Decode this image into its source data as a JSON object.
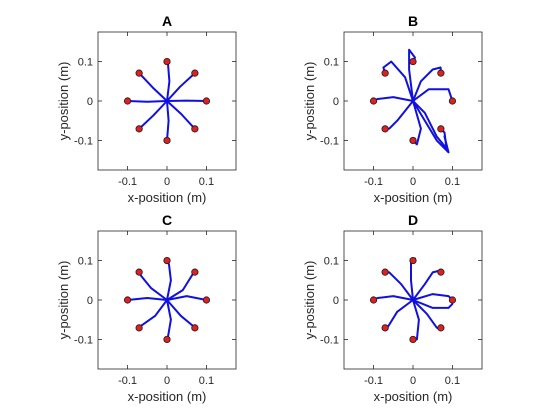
{
  "chart_data": [
    {
      "type": "line",
      "title": "A",
      "xlabel": "x-position (m)",
      "ylabel": "y-position (m)",
      "xlim": [
        -0.175,
        0.175
      ],
      "ylim": [
        -0.175,
        0.175
      ],
      "xticks": [
        {
          "value": -0.1,
          "label": "-0.1"
        },
        {
          "value": 0,
          "label": "0"
        },
        {
          "value": 0.1,
          "label": "0.1"
        }
      ],
      "yticks": [
        {
          "value": -0.1,
          "label": "-0.1"
        },
        {
          "value": 0,
          "label": "0"
        },
        {
          "value": 0.1,
          "label": "0.1"
        }
      ],
      "targets": [
        [
          0.1,
          0
        ],
        [
          0.0707,
          0.0707
        ],
        [
          0,
          0.1
        ],
        [
          -0.0707,
          0.0707
        ],
        [
          -0.1,
          0
        ],
        [
          -0.0707,
          -0.0707
        ],
        [
          0,
          -0.1
        ],
        [
          0.0707,
          -0.0707
        ]
      ],
      "paths": [
        [
          [
            0,
            0
          ],
          [
            0.05,
            0.001
          ],
          [
            0.1,
            0
          ]
        ],
        [
          [
            0,
            0
          ],
          [
            0.033,
            0.036
          ],
          [
            0.0707,
            0.0707
          ]
        ],
        [
          [
            0,
            0
          ],
          [
            0.006,
            0.05
          ],
          [
            0.002,
            0.1
          ]
        ],
        [
          [
            0,
            0
          ],
          [
            -0.036,
            0.034
          ],
          [
            -0.0707,
            0.0707
          ]
        ],
        [
          [
            0,
            0
          ],
          [
            -0.05,
            -0.002
          ],
          [
            -0.1,
            0
          ]
        ],
        [
          [
            0,
            0
          ],
          [
            -0.034,
            -0.036
          ],
          [
            -0.0707,
            -0.0707
          ]
        ],
        [
          [
            0,
            0
          ],
          [
            0.004,
            -0.05
          ],
          [
            0,
            -0.1
          ]
        ],
        [
          [
            0,
            0
          ],
          [
            0.036,
            -0.033
          ],
          [
            0.0707,
            -0.0707
          ]
        ]
      ]
    },
    {
      "type": "line",
      "title": "B",
      "xlabel": "x-position (m)",
      "ylabel": "y-position (m)",
      "xlim": [
        -0.175,
        0.175
      ],
      "ylim": [
        -0.175,
        0.175
      ],
      "xticks": [
        {
          "value": -0.1,
          "label": "-0.1"
        },
        {
          "value": 0,
          "label": "0"
        },
        {
          "value": 0.1,
          "label": "0.1"
        }
      ],
      "yticks": [
        {
          "value": -0.1,
          "label": "-0.1"
        },
        {
          "value": 0,
          "label": "0"
        },
        {
          "value": 0.1,
          "label": "0.1"
        }
      ],
      "targets": [
        [
          0.1,
          0
        ],
        [
          0.0707,
          0.0707
        ],
        [
          0,
          0.1
        ],
        [
          -0.0707,
          0.0707
        ],
        [
          -0.1,
          0
        ],
        [
          -0.0707,
          -0.0707
        ],
        [
          0,
          -0.1
        ],
        [
          0.0707,
          -0.0707
        ]
      ],
      "paths": [
        [
          [
            0,
            0
          ],
          [
            0.04,
            0.03
          ],
          [
            0.09,
            0.03
          ],
          [
            0.1,
            0
          ]
        ],
        [
          [
            0,
            0
          ],
          [
            0.02,
            0.05
          ],
          [
            0.05,
            0.08
          ],
          [
            0.07,
            0.085
          ],
          [
            0.0707,
            0.0707
          ]
        ],
        [
          [
            0,
            0
          ],
          [
            -0.01,
            0.08
          ],
          [
            -0.01,
            0.13
          ],
          [
            0.005,
            0.11
          ],
          [
            0,
            0.1
          ]
        ],
        [
          [
            0,
            0
          ],
          [
            -0.02,
            0.06
          ],
          [
            -0.055,
            0.1
          ],
          [
            -0.075,
            0.085
          ],
          [
            -0.0707,
            0.0707
          ]
        ],
        [
          [
            0,
            0
          ],
          [
            -0.05,
            0.01
          ],
          [
            -0.09,
            0.005
          ],
          [
            -0.1,
            0
          ]
        ],
        [
          [
            0,
            0
          ],
          [
            -0.04,
            -0.05
          ],
          [
            -0.06,
            -0.07
          ],
          [
            -0.0707,
            -0.0707
          ]
        ],
        [
          [
            0,
            0
          ],
          [
            0.02,
            -0.07
          ],
          [
            0.01,
            -0.11
          ],
          [
            0,
            -0.1
          ]
        ],
        [
          [
            0,
            0
          ],
          [
            0.03,
            -0.03
          ],
          [
            0.06,
            -0.09
          ],
          [
            0.085,
            -0.12
          ],
          [
            0.08,
            -0.08
          ],
          [
            0.0707,
            -0.0707
          ]
        ],
        [
          [
            0,
            0
          ],
          [
            0.06,
            -0.1
          ],
          [
            0.09,
            -0.13
          ],
          [
            0.08,
            -0.09
          ]
        ]
      ]
    },
    {
      "type": "line",
      "title": "C",
      "xlabel": "x-position (m)",
      "ylabel": "y-position (m)",
      "xlim": [
        -0.175,
        0.175
      ],
      "ylim": [
        -0.175,
        0.175
      ],
      "xticks": [
        {
          "value": -0.1,
          "label": "-0.1"
        },
        {
          "value": 0,
          "label": "0"
        },
        {
          "value": 0.1,
          "label": "0.1"
        }
      ],
      "yticks": [
        {
          "value": -0.1,
          "label": "-0.1"
        },
        {
          "value": 0,
          "label": "0"
        },
        {
          "value": 0.1,
          "label": "0.1"
        }
      ],
      "targets": [
        [
          0.1,
          0
        ],
        [
          0.0707,
          0.0707
        ],
        [
          0,
          0.1
        ],
        [
          -0.0707,
          0.0707
        ],
        [
          -0.1,
          0
        ],
        [
          -0.0707,
          -0.0707
        ],
        [
          0,
          -0.1
        ],
        [
          0.0707,
          -0.0707
        ]
      ],
      "paths": [
        [
          [
            0,
            0
          ],
          [
            0.05,
            0.01
          ],
          [
            0.1,
            0
          ]
        ],
        [
          [
            0,
            0
          ],
          [
            0.04,
            0.025
          ],
          [
            0.065,
            0.065
          ],
          [
            0.0707,
            0.0707
          ]
        ],
        [
          [
            0,
            0
          ],
          [
            0.01,
            0.05
          ],
          [
            0.005,
            0.09
          ],
          [
            0,
            0.1
          ]
        ],
        [
          [
            0,
            0
          ],
          [
            -0.04,
            0.03
          ],
          [
            -0.065,
            0.06
          ],
          [
            -0.0707,
            0.0707
          ]
        ],
        [
          [
            0,
            0
          ],
          [
            -0.05,
            0.005
          ],
          [
            -0.1,
            0
          ]
        ],
        [
          [
            0,
            0
          ],
          [
            -0.03,
            -0.04
          ],
          [
            -0.065,
            -0.065
          ],
          [
            -0.0707,
            -0.0707
          ]
        ],
        [
          [
            0,
            0
          ],
          [
            0.01,
            -0.05
          ],
          [
            0.003,
            -0.09
          ],
          [
            0,
            -0.1
          ]
        ],
        [
          [
            0,
            0
          ],
          [
            0.035,
            -0.04
          ],
          [
            0.065,
            -0.065
          ],
          [
            0.0707,
            -0.0707
          ]
        ]
      ]
    },
    {
      "type": "line",
      "title": "D",
      "xlabel": "x-position (m)",
      "ylabel": "y-position (m)",
      "xlim": [
        -0.175,
        0.175
      ],
      "ylim": [
        -0.175,
        0.175
      ],
      "xticks": [
        {
          "value": -0.1,
          "label": "-0.1"
        },
        {
          "value": 0,
          "label": "0"
        },
        {
          "value": 0.1,
          "label": "0.1"
        }
      ],
      "yticks": [
        {
          "value": -0.1,
          "label": "-0.1"
        },
        {
          "value": 0,
          "label": "0"
        },
        {
          "value": 0.1,
          "label": "0.1"
        }
      ],
      "targets": [
        [
          0.1,
          0
        ],
        [
          0.0707,
          0.0707
        ],
        [
          0,
          0.1
        ],
        [
          -0.0707,
          0.0707
        ],
        [
          -0.1,
          0
        ],
        [
          -0.0707,
          -0.0707
        ],
        [
          0,
          -0.1
        ],
        [
          0.0707,
          -0.0707
        ]
      ],
      "paths": [
        [
          [
            0,
            0
          ],
          [
            0.05,
            0.015
          ],
          [
            0.09,
            0.01
          ],
          [
            0.1,
            0
          ]
        ],
        [
          [
            0,
            0
          ],
          [
            0.03,
            0.04
          ],
          [
            0.05,
            0.07
          ],
          [
            0.07,
            0.075
          ],
          [
            0.0707,
            0.0707
          ]
        ],
        [
          [
            0,
            0
          ],
          [
            -0.005,
            0.05
          ],
          [
            -0.005,
            0.1
          ],
          [
            0.005,
            0.105
          ],
          [
            0,
            0.1
          ]
        ],
        [
          [
            0,
            0
          ],
          [
            -0.03,
            0.04
          ],
          [
            -0.06,
            0.07
          ],
          [
            -0.0707,
            0.0707
          ]
        ],
        [
          [
            0,
            0
          ],
          [
            -0.05,
            0.01
          ],
          [
            -0.09,
            0.005
          ],
          [
            -0.1,
            0
          ]
        ],
        [
          [
            0,
            0
          ],
          [
            -0.04,
            -0.03
          ],
          [
            -0.065,
            -0.07
          ],
          [
            -0.0707,
            -0.0707
          ]
        ],
        [
          [
            0,
            0
          ],
          [
            0.015,
            -0.05
          ],
          [
            0.01,
            -0.1
          ],
          [
            0,
            -0.1
          ]
        ],
        [
          [
            0,
            0
          ],
          [
            0.035,
            -0.035
          ],
          [
            0.06,
            -0.07
          ],
          [
            0.07,
            -0.075
          ],
          [
            0.0707,
            -0.0707
          ]
        ],
        [
          [
            0,
            0
          ],
          [
            0.05,
            -0.02
          ],
          [
            0.09,
            -0.02
          ],
          [
            0.1,
            -0.01
          ]
        ]
      ]
    }
  ],
  "colors": {
    "trajectory": "#1010e0",
    "target_fill": "#e02020",
    "target_edge": "#1a1a1a"
  }
}
